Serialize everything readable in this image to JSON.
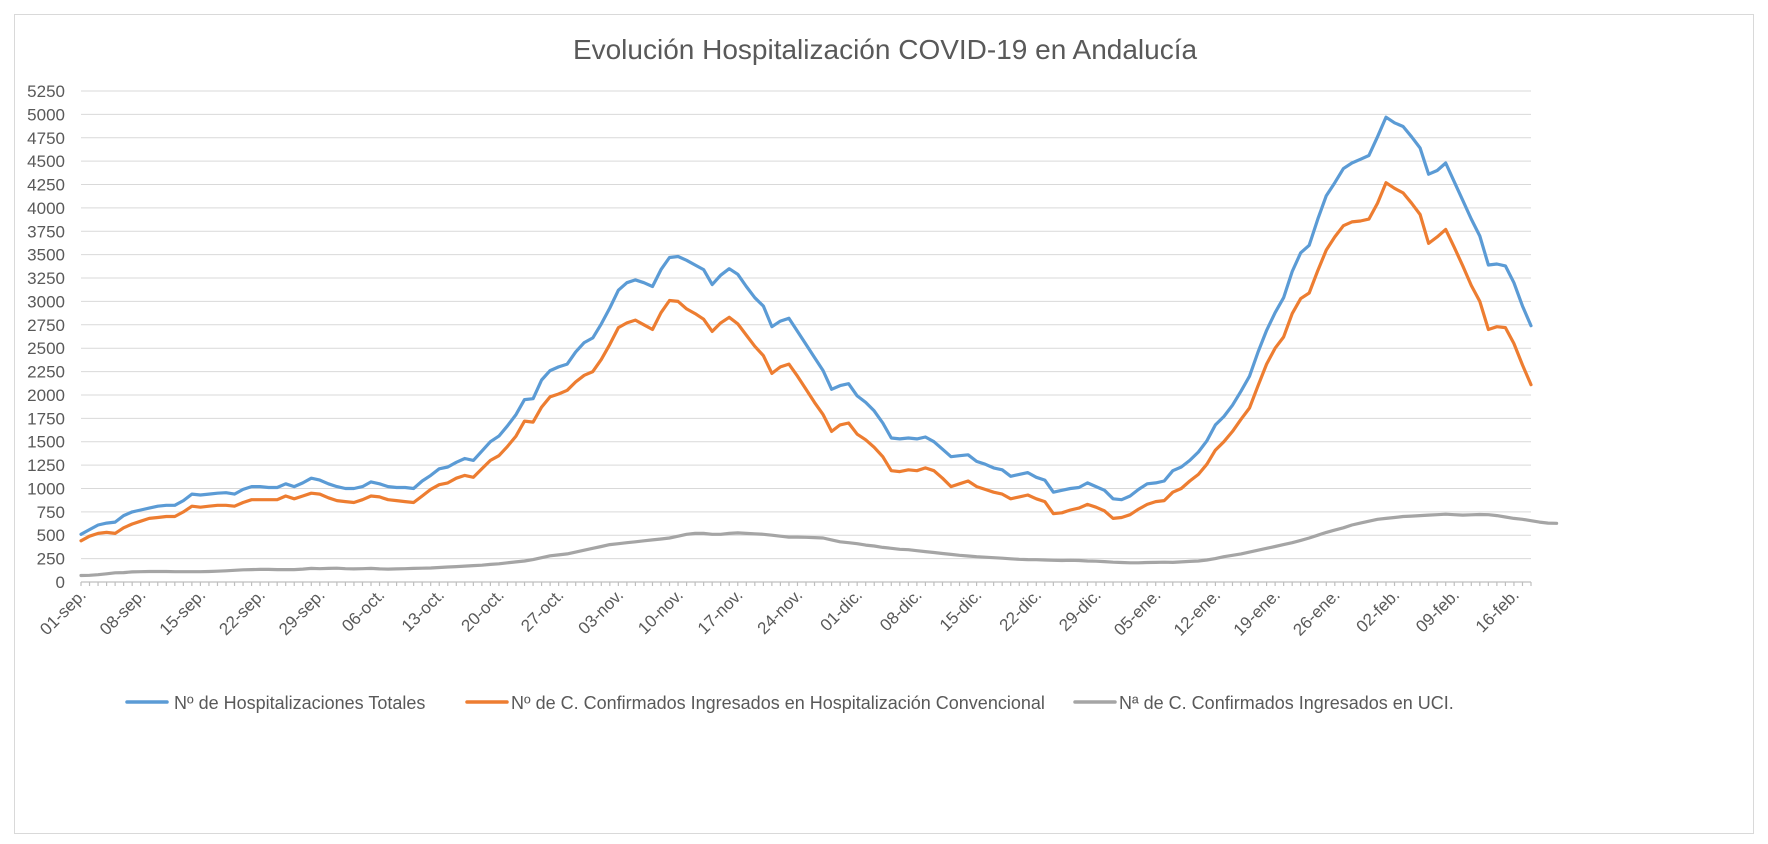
{
  "chart_data": {
    "type": "line",
    "title": "Evolución Hospitalización COVID-19 en Andalucía",
    "xlabel": "",
    "ylabel": "",
    "ylim": [
      0,
      5250
    ],
    "yticks": [
      0,
      250,
      500,
      750,
      1000,
      1250,
      1500,
      1750,
      2000,
      2250,
      2500,
      2750,
      3000,
      3250,
      3500,
      3750,
      4000,
      4250,
      4500,
      4750,
      5000,
      5250
    ],
    "x_start": "01-sep.",
    "x_end": "19-feb.",
    "x_ticks": [
      "01-sep.",
      "08-sep.",
      "15-sep.",
      "22-sep.",
      "29-sep.",
      "06-oct.",
      "13-oct.",
      "20-oct.",
      "27-oct.",
      "03-nov.",
      "10-nov.",
      "17-nov.",
      "24-nov.",
      "01-dic.",
      "08-dic.",
      "15-dic.",
      "22-dic.",
      "29-dic.",
      "05-ene.",
      "12-ene.",
      "19-ene.",
      "26-ene.",
      "02-feb.",
      "09-feb.",
      "16-feb."
    ],
    "grid": true,
    "legend_position": "bottom",
    "series": [
      {
        "name": "Nº de Hospitalizaciones Totales",
        "color": "#5b9bd5",
        "values": [
          510,
          560,
          610,
          630,
          640,
          710,
          750,
          770,
          790,
          810,
          820,
          820,
          870,
          940,
          930,
          940,
          950,
          955,
          940,
          990,
          1020,
          1020,
          1010,
          1010,
          1050,
          1020,
          1060,
          1110,
          1090,
          1050,
          1020,
          1000,
          1000,
          1020,
          1070,
          1050,
          1020,
          1010,
          1010,
          1000,
          1080,
          1140,
          1210,
          1230,
          1280,
          1320,
          1300,
          1400,
          1500,
          1560,
          1670,
          1790,
          1950,
          1960,
          2160,
          2260,
          2300,
          2330,
          2460,
          2560,
          2610,
          2760,
          2930,
          3120,
          3200,
          3230,
          3200,
          3160,
          3340,
          3470,
          3480,
          3440,
          3390,
          3340,
          3180,
          3280,
          3350,
          3290,
          3160,
          3040,
          2950,
          2730,
          2790,
          2820,
          2680,
          2540,
          2400,
          2260,
          2060,
          2100,
          2120,
          1990,
          1920,
          1830,
          1700,
          1540,
          1530,
          1540,
          1530,
          1550,
          1500,
          1420,
          1340,
          1350,
          1360,
          1290,
          1260,
          1220,
          1200,
          1130,
          1150,
          1170,
          1120,
          1090,
          960,
          980,
          1000,
          1010,
          1060,
          1020,
          980,
          890,
          880,
          920,
          990,
          1050,
          1060,
          1080,
          1190,
          1230,
          1300,
          1390,
          1510,
          1680,
          1770,
          1890,
          2040,
          2200,
          2460,
          2690,
          2880,
          3040,
          3320,
          3520,
          3600,
          3880,
          4130,
          4270,
          4420,
          4480,
          4520,
          4560,
          4760,
          4970,
          4910,
          4870,
          4760,
          4640,
          4360,
          4400,
          4480,
          4280,
          4080,
          3880,
          3700,
          3390,
          3400,
          3380,
          3200,
          2950,
          2740
        ]
      },
      {
        "name": "Nº de C. Confirmados Ingresados en Hospitalización Convencional",
        "color": "#ed7d31",
        "values": [
          440,
          490,
          520,
          530,
          520,
          580,
          620,
          650,
          680,
          690,
          700,
          700,
          750,
          810,
          800,
          810,
          820,
          820,
          810,
          850,
          880,
          880,
          880,
          880,
          920,
          890,
          920,
          950,
          940,
          900,
          870,
          860,
          850,
          880,
          920,
          910,
          880,
          870,
          860,
          850,
          920,
          990,
          1040,
          1060,
          1110,
          1140,
          1120,
          1210,
          1300,
          1350,
          1450,
          1560,
          1720,
          1710,
          1870,
          1980,
          2010,
          2050,
          2140,
          2210,
          2250,
          2380,
          2540,
          2720,
          2770,
          2800,
          2750,
          2700,
          2880,
          3010,
          3000,
          2920,
          2870,
          2810,
          2680,
          2770,
          2830,
          2760,
          2640,
          2520,
          2420,
          2230,
          2300,
          2330,
          2200,
          2060,
          1920,
          1790,
          1610,
          1680,
          1700,
          1580,
          1520,
          1440,
          1340,
          1190,
          1180,
          1200,
          1190,
          1220,
          1190,
          1110,
          1020,
          1050,
          1080,
          1020,
          990,
          960,
          940,
          890,
          910,
          930,
          890,
          860,
          730,
          740,
          770,
          790,
          830,
          800,
          760,
          680,
          690,
          720,
          780,
          830,
          860,
          870,
          960,
          1000,
          1080,
          1150,
          1260,
          1410,
          1500,
          1610,
          1740,
          1860,
          2100,
          2330,
          2500,
          2620,
          2870,
          3030,
          3090,
          3330,
          3550,
          3690,
          3810,
          3850,
          3860,
          3880,
          4050,
          4270,
          4210,
          4160,
          4050,
          3930,
          3620,
          3690,
          3770,
          3580,
          3380,
          3170,
          3000,
          2700,
          2730,
          2720,
          2550,
          2320,
          2110
        ]
      },
      {
        "name": "Nª de C. Confirmados Ingresados en UCI.",
        "color": "#a5a5a5",
        "values": [
          70,
          72,
          78,
          88,
          98,
          100,
          108,
          110,
          112,
          112,
          112,
          110,
          110,
          110,
          110,
          112,
          115,
          120,
          125,
          130,
          133,
          135,
          135,
          133,
          133,
          133,
          138,
          145,
          142,
          145,
          148,
          142,
          140,
          142,
          145,
          140,
          138,
          140,
          142,
          145,
          148,
          150,
          155,
          160,
          165,
          170,
          175,
          180,
          188,
          195,
          205,
          215,
          225,
          240,
          260,
          280,
          290,
          300,
          320,
          340,
          360,
          380,
          400,
          410,
          420,
          430,
          440,
          450,
          460,
          470,
          490,
          510,
          520,
          520,
          510,
          510,
          520,
          525,
          520,
          515,
          510,
          500,
          490,
          480,
          480,
          478,
          475,
          470,
          450,
          430,
          420,
          410,
          395,
          385,
          370,
          360,
          350,
          345,
          335,
          325,
          315,
          305,
          295,
          285,
          278,
          270,
          265,
          260,
          255,
          248,
          243,
          240,
          238,
          235,
          232,
          230,
          232,
          230,
          225,
          222,
          218,
          212,
          208,
          205,
          205,
          208,
          210,
          212,
          210,
          215,
          220,
          225,
          235,
          250,
          270,
          285,
          300,
          320,
          340,
          360,
          380,
          400,
          420,
          445,
          470,
          500,
          530,
          555,
          580,
          610,
          630,
          650,
          670,
          680,
          690,
          700,
          705,
          710,
          715,
          720,
          725,
          720,
          715,
          718,
          722,
          720,
          710,
          695,
          680,
          670,
          655,
          640,
          630,
          628
        ]
      }
    ]
  }
}
